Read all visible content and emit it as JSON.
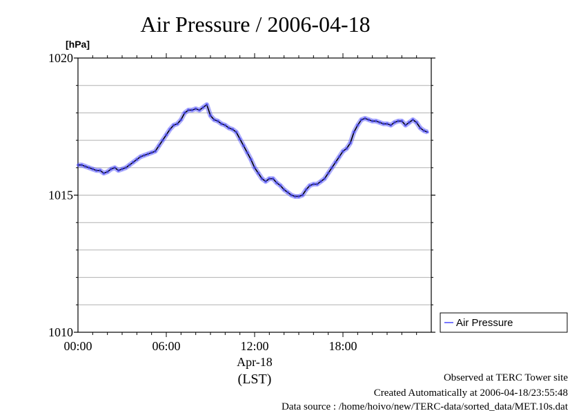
{
  "chart_data": {
    "type": "line",
    "title": "Air Pressure / 2006-04-18",
    "ylabel": "[hPa]",
    "xlabel_date": "Apr-18",
    "xlabel_unit": "(LST)",
    "xlim": [
      0,
      24
    ],
    "ylim": [
      1010,
      1020
    ],
    "yticks": [
      {
        "value": 1010,
        "label": "1010"
      },
      {
        "value": 1015,
        "label": "1015"
      },
      {
        "value": 1020,
        "label": "1020"
      }
    ],
    "yminor_gridlines": [
      1011,
      1012,
      1013,
      1014,
      1016,
      1017,
      1018,
      1019
    ],
    "xticks": [
      {
        "value": 0,
        "label": "00:00"
      },
      {
        "value": 6,
        "label": "06:00"
      },
      {
        "value": 12,
        "label": "12:00"
      },
      {
        "value": 18,
        "label": "18:00"
      }
    ],
    "grid": true,
    "legend": {
      "placement": "right"
    },
    "series": [
      {
        "name": "Air Pressure",
        "color": "#4a4aff",
        "x": [
          0.0,
          0.25,
          0.5,
          0.75,
          1.0,
          1.25,
          1.5,
          1.75,
          2.0,
          2.25,
          2.5,
          2.75,
          3.0,
          3.25,
          3.5,
          3.75,
          4.0,
          4.25,
          4.5,
          4.75,
          5.0,
          5.25,
          5.5,
          5.75,
          6.0,
          6.25,
          6.5,
          6.75,
          7.0,
          7.25,
          7.5,
          7.75,
          8.0,
          8.25,
          8.5,
          8.75,
          9.0,
          9.25,
          9.5,
          9.75,
          10.0,
          10.25,
          10.5,
          10.75,
          11.0,
          11.25,
          11.5,
          11.75,
          12.0,
          12.25,
          12.5,
          12.75,
          13.0,
          13.25,
          13.5,
          13.75,
          14.0,
          14.25,
          14.5,
          14.75,
          15.0,
          15.25,
          15.5,
          15.75,
          16.0,
          16.25,
          16.5,
          16.75,
          17.0,
          17.25,
          17.5,
          17.75,
          18.0,
          18.25,
          18.5,
          18.75,
          19.0,
          19.25,
          19.5,
          19.75,
          20.0,
          20.25,
          20.5,
          20.75,
          21.0,
          21.25,
          21.5,
          21.75,
          22.0,
          22.25,
          22.5,
          22.75,
          23.0,
          23.25,
          23.5,
          23.75
        ],
        "y": [
          1016.1,
          1016.1,
          1016.05,
          1016.0,
          1015.95,
          1015.9,
          1015.9,
          1015.8,
          1015.85,
          1015.95,
          1016.0,
          1015.9,
          1015.95,
          1016.0,
          1016.1,
          1016.2,
          1016.3,
          1016.4,
          1016.45,
          1016.5,
          1016.55,
          1016.6,
          1016.8,
          1017.0,
          1017.2,
          1017.4,
          1017.55,
          1017.6,
          1017.75,
          1018.0,
          1018.1,
          1018.1,
          1018.15,
          1018.1,
          1018.2,
          1018.3,
          1017.9,
          1017.75,
          1017.7,
          1017.6,
          1017.55,
          1017.45,
          1017.4,
          1017.3,
          1017.05,
          1016.8,
          1016.55,
          1016.3,
          1016.0,
          1015.8,
          1015.6,
          1015.5,
          1015.6,
          1015.6,
          1015.45,
          1015.35,
          1015.2,
          1015.1,
          1015.0,
          1014.95,
          1014.95,
          1015.0,
          1015.2,
          1015.35,
          1015.4,
          1015.4,
          1015.5,
          1015.6,
          1015.8,
          1016.0,
          1016.2,
          1016.4,
          1016.6,
          1016.7,
          1016.9,
          1017.3,
          1017.55,
          1017.75,
          1017.8,
          1017.75,
          1017.7,
          1017.7,
          1017.65,
          1017.6,
          1017.6,
          1017.55,
          1017.65,
          1017.7,
          1017.7,
          1017.55,
          1017.65,
          1017.75,
          1017.65,
          1017.45,
          1017.35,
          1017.3
        ]
      }
    ]
  },
  "footer": {
    "line1": "Observed at TERC Tower site",
    "line2": "Created Automatically at 2006-04-18/23:55:48",
    "line3": "Data source : /home/hoivo/new/TERC-data/sorted_data/MET.10s.dat"
  }
}
